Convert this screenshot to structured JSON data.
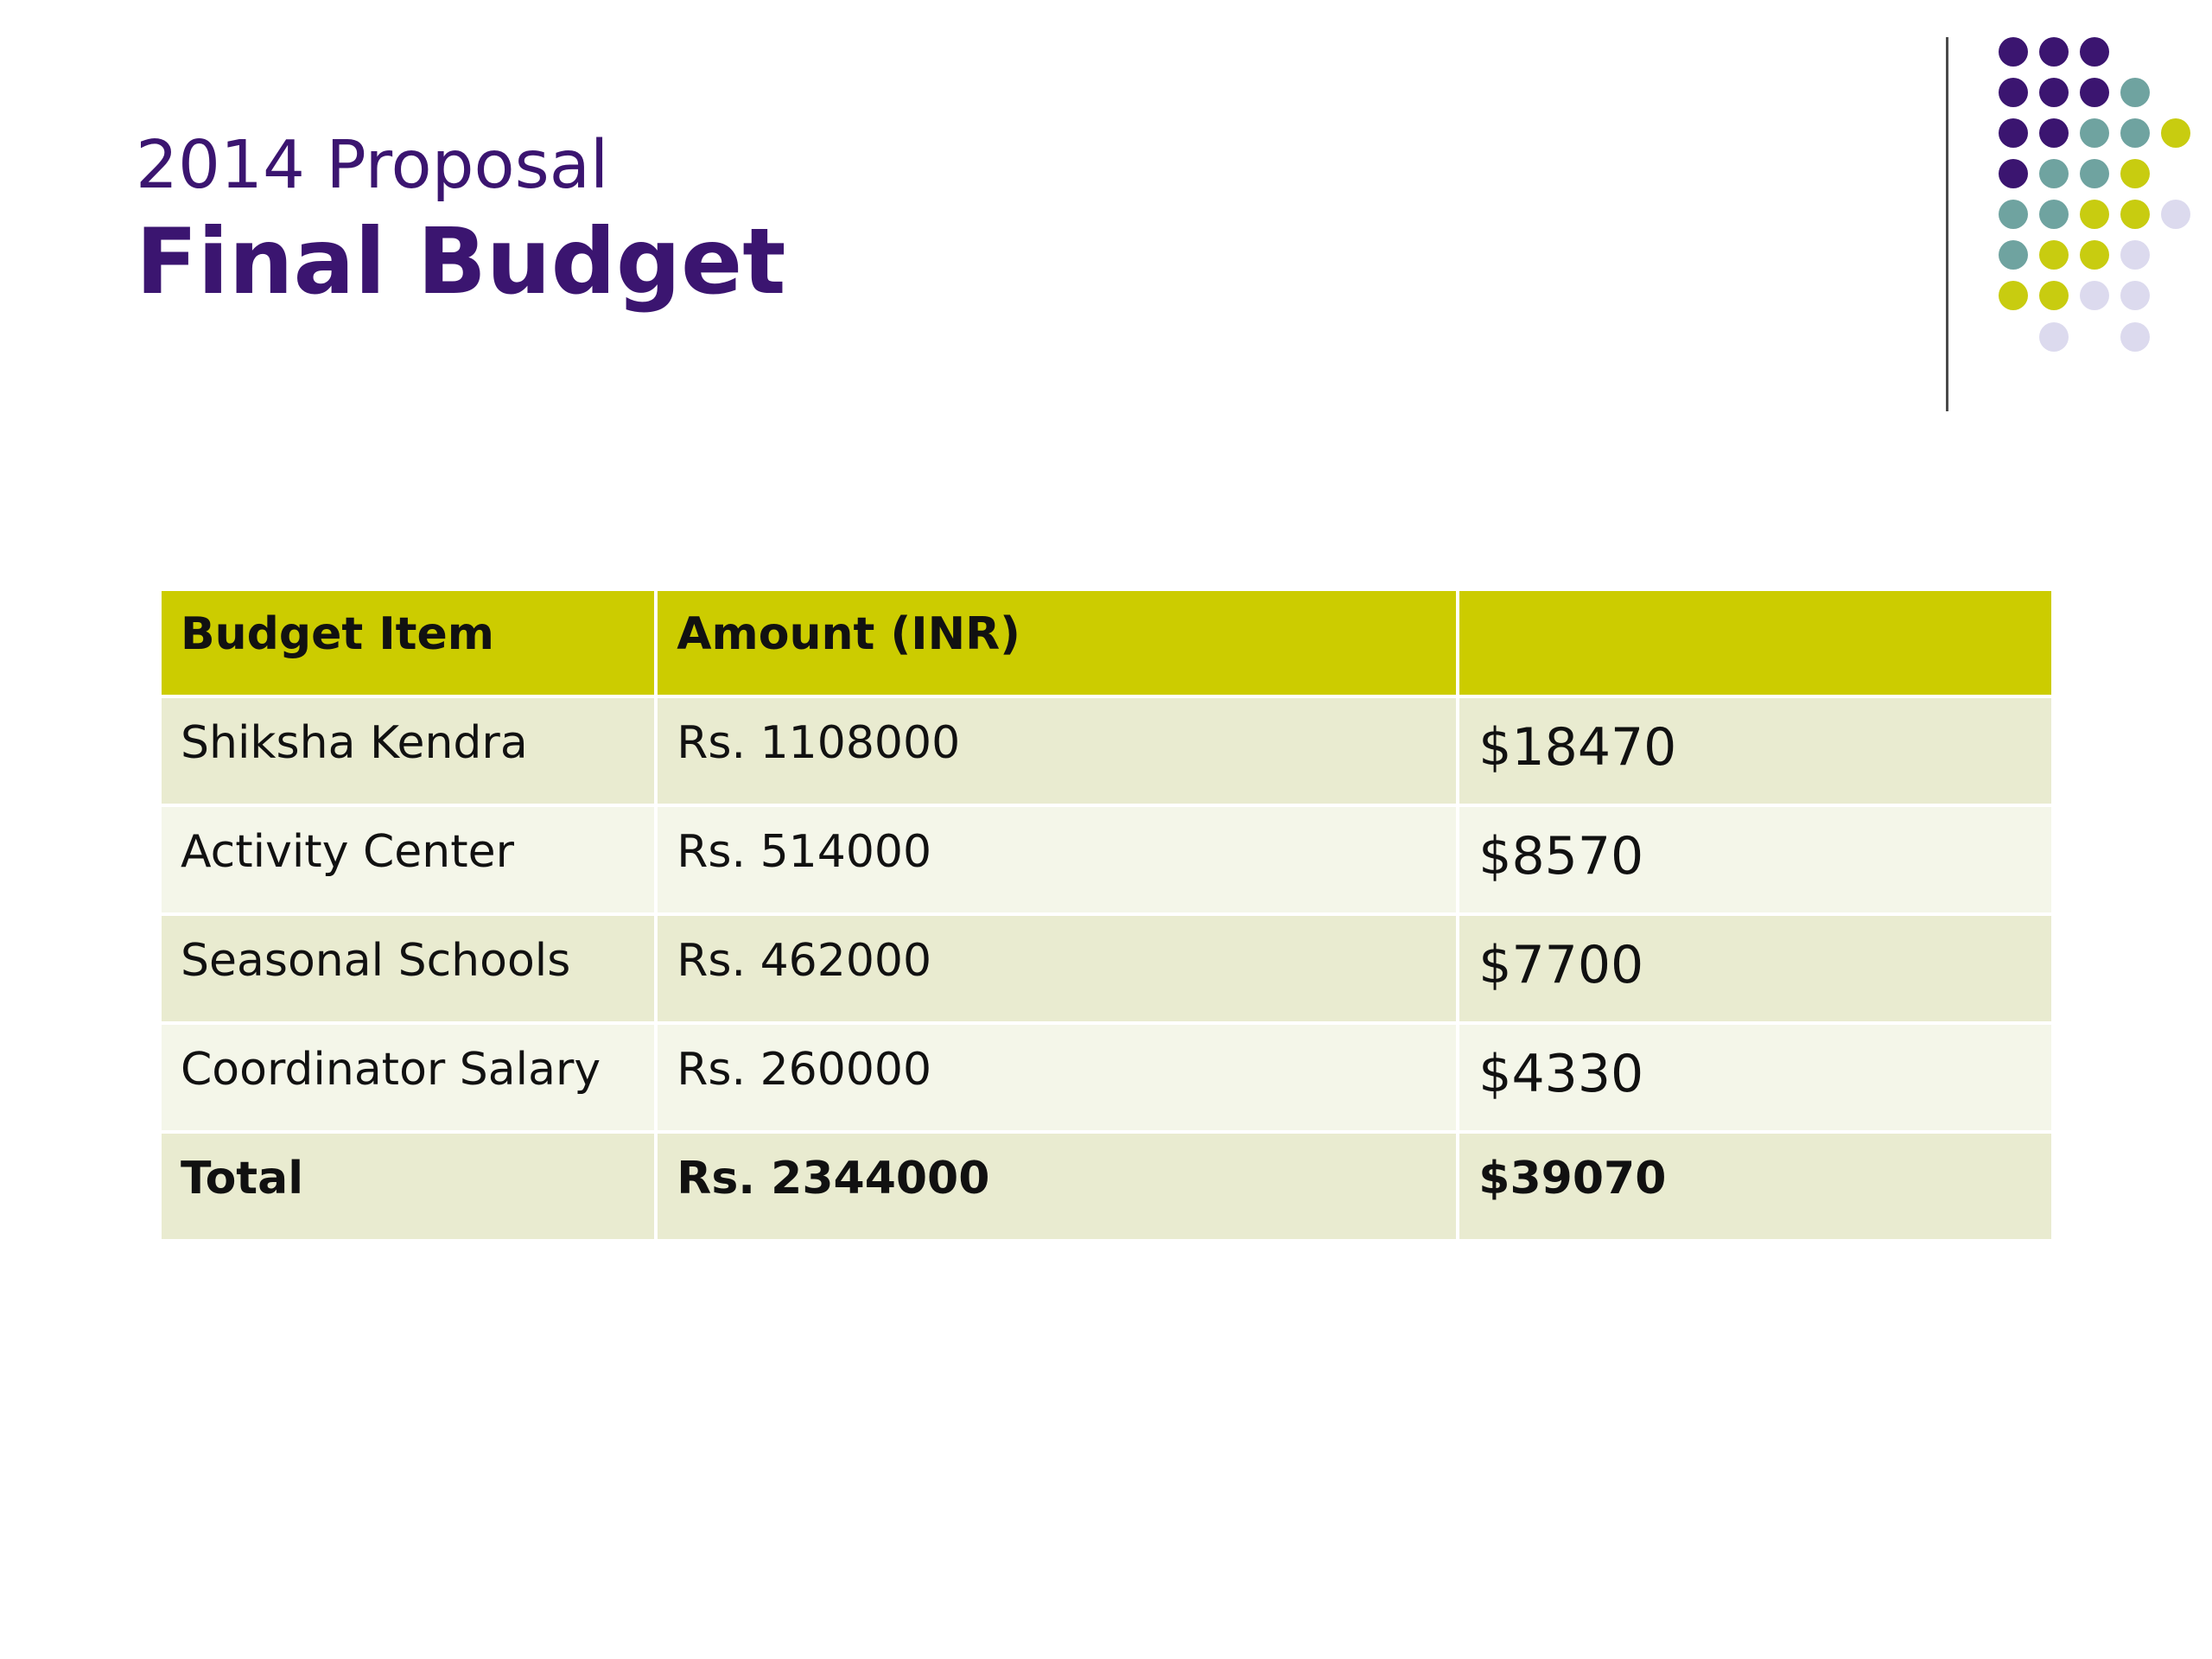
{
  "title": {
    "line1": "2014 Proposal",
    "line2": "Final Budget"
  },
  "colors": {
    "title": "#3b1570",
    "header_bg": "#cccc00",
    "row_dark": "#e9ebd0",
    "row_light": "#f4f6e9",
    "dot_purple": "#3b1570",
    "dot_teal": "#6fa3a0",
    "dot_yellow": "#c8cc10",
    "dot_lavender": "#dcdaee"
  },
  "table": {
    "headers": [
      "Budget Item",
      "Amount (INR)",
      ""
    ],
    "rows": [
      {
        "item": "Shiksha Kendra",
        "inr": "Rs. 1108000",
        "usd": "$18470"
      },
      {
        "item": "Activity Center",
        "inr": "Rs. 514000",
        "usd": "$8570"
      },
      {
        "item": "Seasonal Schools",
        "inr": "Rs. 462000",
        "usd": "$7700"
      },
      {
        "item": "Coordinator Salary",
        "inr": "Rs. 260000",
        "usd": "$4330"
      }
    ],
    "total": {
      "item": "Total",
      "inr": "Rs. 2344000",
      "usd": "$39070"
    }
  }
}
